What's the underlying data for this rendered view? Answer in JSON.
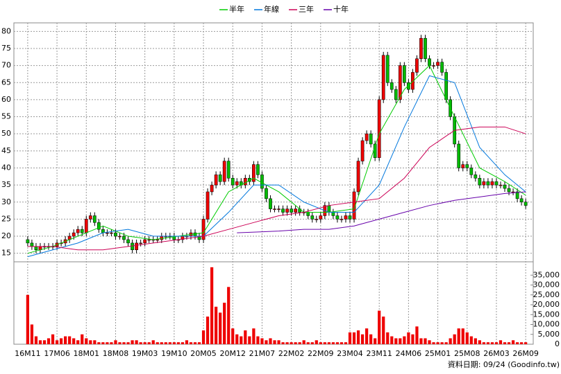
{
  "chart_data": {
    "type": "candlestick",
    "categories": [
      "16M11",
      null,
      null,
      null,
      null,
      null,
      null,
      "17M06",
      null,
      null,
      null,
      null,
      null,
      null,
      "18M01",
      null,
      null,
      null,
      null,
      null,
      null,
      "18M08",
      null,
      null,
      null,
      null,
      null,
      null,
      "19M03",
      null,
      null,
      null,
      null,
      null,
      null,
      "19M10",
      null,
      null,
      null,
      null,
      null,
      null,
      "20M05",
      null,
      null,
      null,
      null,
      null,
      null,
      "20M12",
      null,
      null,
      null,
      null,
      null,
      null,
      "21M07",
      null,
      null,
      null,
      null,
      null,
      null,
      "22M02",
      null,
      null,
      null,
      null,
      null,
      null,
      "22M09",
      null,
      null,
      null,
      null,
      null,
      null,
      "23M04",
      null,
      null,
      null,
      null,
      null,
      null,
      "23M11",
      null,
      null,
      null,
      null,
      null,
      null,
      "24M06",
      null,
      null,
      null,
      null,
      null,
      null,
      "25M01",
      null,
      null,
      null,
      null,
      null,
      null,
      "25M08",
      null,
      null,
      null,
      null,
      null,
      null,
      "26M03",
      null,
      null,
      null,
      null,
      null,
      null,
      "26M09"
    ],
    "open": [
      19,
      18,
      17,
      16,
      17,
      17,
      17,
      17,
      18,
      18,
      19,
      20,
      21,
      22,
      21,
      25,
      26,
      24,
      22,
      21,
      21,
      21,
      20,
      20,
      19,
      18,
      16,
      18,
      18,
      19,
      19,
      19,
      19,
      20,
      20,
      20,
      19,
      19,
      20,
      20,
      21,
      20,
      19,
      25,
      33,
      35,
      38,
      36,
      42,
      37,
      35,
      36,
      35,
      37,
      36,
      41,
      38,
      34,
      31,
      28,
      28,
      28,
      27,
      28,
      27,
      28,
      27,
      27,
      26,
      25,
      25,
      26,
      29,
      27,
      26,
      25,
      25,
      26,
      25,
      33,
      42,
      48,
      50,
      47,
      43,
      60,
      73,
      65,
      63,
      60,
      70,
      65,
      63,
      68,
      72,
      78,
      72,
      70,
      70,
      71,
      68,
      60,
      55,
      47,
      40,
      41,
      40,
      38,
      37,
      35,
      36,
      35,
      36,
      35,
      35,
      34,
      33,
      33,
      31,
      30
    ],
    "high": [
      20,
      19,
      18,
      18,
      18,
      18,
      18,
      19,
      19,
      20,
      21,
      22,
      23,
      23,
      26,
      27,
      27,
      25,
      23,
      22,
      22,
      22,
      21,
      21,
      20,
      19,
      19,
      19,
      20,
      20,
      20,
      20,
      21,
      21,
      21,
      21,
      20,
      21,
      21,
      22,
      22,
      21,
      26,
      34,
      36,
      39,
      39,
      43,
      43,
      38,
      37,
      37,
      38,
      38,
      42,
      42,
      39,
      35,
      32,
      29,
      29,
      29,
      29,
      29,
      29,
      29,
      28,
      28,
      27,
      26,
      27,
      30,
      30,
      28,
      27,
      26,
      27,
      27,
      34,
      43,
      49,
      51,
      51,
      48,
      61,
      74,
      74,
      66,
      64,
      71,
      71,
      66,
      69,
      73,
      79,
      79,
      73,
      71,
      72,
      72,
      69,
      61,
      56,
      48,
      42,
      42,
      41,
      39,
      38,
      37,
      37,
      37,
      37,
      36,
      36,
      35,
      34,
      34,
      32,
      31
    ],
    "low": [
      17,
      16,
      15,
      15,
      16,
      16,
      16,
      16,
      17,
      17,
      18,
      19,
      20,
      20,
      20,
      24,
      23,
      21,
      20,
      20,
      20,
      19,
      19,
      18,
      17,
      15,
      15,
      17,
      17,
      18,
      18,
      18,
      18,
      19,
      19,
      18,
      18,
      18,
      19,
      19,
      19,
      18,
      18,
      24,
      32,
      34,
      35,
      35,
      36,
      34,
      34,
      34,
      34,
      35,
      35,
      37,
      33,
      30,
      27,
      27,
      27,
      26,
      26,
      26,
      26,
      26,
      26,
      25,
      24,
      24,
      24,
      25,
      26,
      25,
      24,
      24,
      24,
      24,
      24,
      32,
      41,
      47,
      46,
      42,
      42,
      59,
      64,
      62,
      59,
      59,
      64,
      62,
      62,
      67,
      71,
      71,
      69,
      69,
      69,
      67,
      59,
      54,
      46,
      39,
      39,
      39,
      37,
      36,
      34,
      34,
      34,
      34,
      34,
      34,
      33,
      32,
      32,
      30,
      29,
      28
    ],
    "close": [
      18,
      17,
      16,
      17,
      17,
      17,
      17,
      18,
      18,
      19,
      20,
      21,
      22,
      21,
      25,
      26,
      24,
      22,
      21,
      21,
      21,
      20,
      20,
      19,
      18,
      16,
      18,
      18,
      19,
      19,
      19,
      19,
      20,
      20,
      20,
      19,
      19,
      20,
      20,
      21,
      20,
      19,
      25,
      33,
      35,
      38,
      36,
      42,
      37,
      35,
      36,
      35,
      37,
      36,
      41,
      38,
      34,
      31,
      28,
      28,
      28,
      27,
      28,
      27,
      28,
      27,
      27,
      26,
      25,
      25,
      26,
      29,
      27,
      26,
      25,
      25,
      26,
      25,
      33,
      42,
      48,
      50,
      47,
      43,
      60,
      73,
      65,
      63,
      60,
      70,
      65,
      63,
      68,
      72,
      78,
      72,
      70,
      70,
      71,
      68,
      60,
      55,
      47,
      40,
      41,
      40,
      38,
      37,
      35,
      36,
      35,
      36,
      35,
      35,
      34,
      33,
      33,
      31,
      30,
      29
    ],
    "volume": [
      25000,
      10000,
      4000,
      2000,
      2000,
      3000,
      5000,
      2000,
      3000,
      4000,
      4000,
      3000,
      2000,
      5000,
      3000,
      2000,
      2000,
      1000,
      1000,
      1000,
      1000,
      2000,
      1000,
      1000,
      1000,
      2000,
      2000,
      1000,
      1000,
      1000,
      2000,
      1000,
      1000,
      1000,
      1000,
      1000,
      1000,
      1000,
      2000,
      1000,
      1000,
      1000,
      7000,
      14000,
      39000,
      19000,
      16000,
      21000,
      29000,
      8000,
      5000,
      4000,
      7000,
      4000,
      8000,
      4000,
      3000,
      2000,
      3000,
      2000,
      2000,
      1000,
      1000,
      1000,
      1000,
      1000,
      2000,
      1000,
      1000,
      2000,
      1000,
      1000,
      1000,
      1000,
      1000,
      1000,
      1000,
      6000,
      6000,
      7000,
      5000,
      8000,
      5000,
      3000,
      17000,
      14000,
      6000,
      4000,
      3000,
      3000,
      4000,
      6000,
      5000,
      9000,
      3000,
      3000,
      2000,
      1000,
      1000,
      1000,
      1000,
      3000,
      5000,
      8000,
      8000,
      6000,
      4000,
      3000,
      2000,
      1000,
      1000,
      1000,
      1000,
      2000,
      1000,
      1000,
      2000,
      1000,
      1000,
      1000
    ],
    "up_color": "#ee0000",
    "down_color": "#00bb00",
    "volume_color": "#ee0000",
    "series": [
      {
        "name": "半年",
        "color": "#00cc00",
        "x": [
          0,
          6,
          12,
          18,
          24,
          30,
          36,
          42,
          48,
          54,
          60,
          66,
          72,
          78,
          84,
          90,
          96,
          102,
          108,
          114,
          119
        ],
        "values": [
          15,
          17,
          20,
          23,
          20,
          19,
          20,
          21,
          33,
          37,
          33,
          27,
          27,
          28,
          50,
          63,
          70,
          55,
          40,
          36,
          32
        ]
      },
      {
        "name": "年線",
        "color": "#0077dd",
        "x": [
          0,
          6,
          12,
          18,
          24,
          30,
          36,
          42,
          48,
          54,
          60,
          66,
          72,
          78,
          84,
          90,
          96,
          102,
          108,
          114,
          119
        ],
        "values": [
          14,
          16,
          18,
          21,
          22,
          20,
          20,
          20,
          27,
          35,
          35,
          30,
          27,
          27,
          35,
          52,
          67,
          65,
          46,
          38,
          33
        ]
      },
      {
        "name": "三年",
        "color": "#cc0055",
        "x": [
          0,
          6,
          12,
          18,
          24,
          30,
          36,
          42,
          48,
          54,
          60,
          66,
          72,
          78,
          84,
          90,
          96,
          102,
          108,
          114,
          119
        ],
        "values": [
          17,
          17,
          16,
          16,
          17,
          18,
          19,
          20,
          22,
          24,
          26,
          27,
          29,
          30,
          31,
          37,
          46,
          51,
          52,
          52,
          50
        ]
      },
      {
        "name": "十年",
        "color": "#6600aa",
        "x": [
          50,
          60,
          66,
          72,
          78,
          84,
          90,
          96,
          102,
          108,
          114,
          119
        ],
        "values": [
          21,
          21.5,
          22,
          22,
          23,
          25,
          27,
          29,
          30.5,
          31.5,
          32.5,
          33
        ]
      }
    ],
    "xlim": [
      -3.3,
      120.8
    ],
    "ylim": [
      12.5,
      82.5
    ],
    "yticks": [
      15,
      20,
      25,
      30,
      35,
      40,
      45,
      50,
      55,
      60,
      65,
      70,
      75,
      80
    ],
    "y2lim": [
      0,
      40000
    ],
    "y2ticks": [
      0,
      {
        "value": 5000,
        "label": "5,000"
      },
      {
        "value": 10000,
        "label": "10,000"
      },
      {
        "value": 15000,
        "label": "15,000"
      },
      {
        "value": 20000,
        "label": "20,000"
      },
      {
        "value": 25000,
        "label": "25,000"
      },
      {
        "value": 30000,
        "label": "30,000"
      },
      {
        "value": 35000,
        "label": "35,000"
      }
    ],
    "grid": true,
    "footnote": "資料日期: 09/24 (Goodinfo.tw)"
  }
}
